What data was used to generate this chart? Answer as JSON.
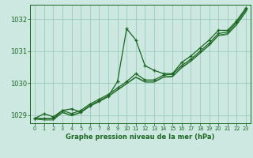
{
  "bg_color": "#cce8e0",
  "grid_color": "#99ccbb",
  "line_color": "#1a6620",
  "xlabel": "Graphe pression niveau de la mer (hPa)",
  "ylim": [
    1028.75,
    1032.45
  ],
  "xlim": [
    -0.5,
    23.5
  ],
  "yticks": [
    1029,
    1030,
    1031,
    1032
  ],
  "xticks": [
    0,
    1,
    2,
    3,
    4,
    5,
    6,
    7,
    8,
    9,
    10,
    11,
    12,
    13,
    14,
    15,
    16,
    17,
    18,
    19,
    20,
    21,
    22,
    23
  ],
  "series1": [
    1028.9,
    1029.05,
    1028.95,
    1029.15,
    1029.2,
    1029.1,
    1029.3,
    1029.45,
    1029.6,
    1030.05,
    1031.7,
    1031.35,
    1030.55,
    1030.4,
    1030.3,
    1030.3,
    1030.65,
    1030.85,
    1031.1,
    1031.35,
    1031.65,
    1031.65,
    1031.95,
    1032.35
  ],
  "series2": [
    1028.9,
    1028.9,
    1028.9,
    1029.15,
    1029.05,
    1029.15,
    1029.35,
    1029.5,
    1029.65,
    1029.85,
    1030.05,
    1030.3,
    1030.1,
    1030.1,
    1030.25,
    1030.28,
    1030.55,
    1030.75,
    1031.0,
    1031.25,
    1031.55,
    1031.6,
    1031.9,
    1032.3
  ],
  "series3": [
    1028.9,
    1028.88,
    1028.88,
    1029.1,
    1029.0,
    1029.1,
    1029.3,
    1029.45,
    1029.6,
    1029.8,
    1030.0,
    1030.2,
    1030.05,
    1030.05,
    1030.2,
    1030.22,
    1030.5,
    1030.7,
    1030.95,
    1031.2,
    1031.5,
    1031.55,
    1031.85,
    1032.25
  ],
  "series4": [
    1028.88,
    1028.85,
    1028.85,
    1029.08,
    1028.98,
    1029.08,
    1029.28,
    1029.42,
    1029.58,
    1029.78,
    1029.98,
    1030.18,
    1030.03,
    1030.03,
    1030.18,
    1030.2,
    1030.48,
    1030.68,
    1030.93,
    1031.18,
    1031.48,
    1031.52,
    1031.82,
    1032.22
  ]
}
